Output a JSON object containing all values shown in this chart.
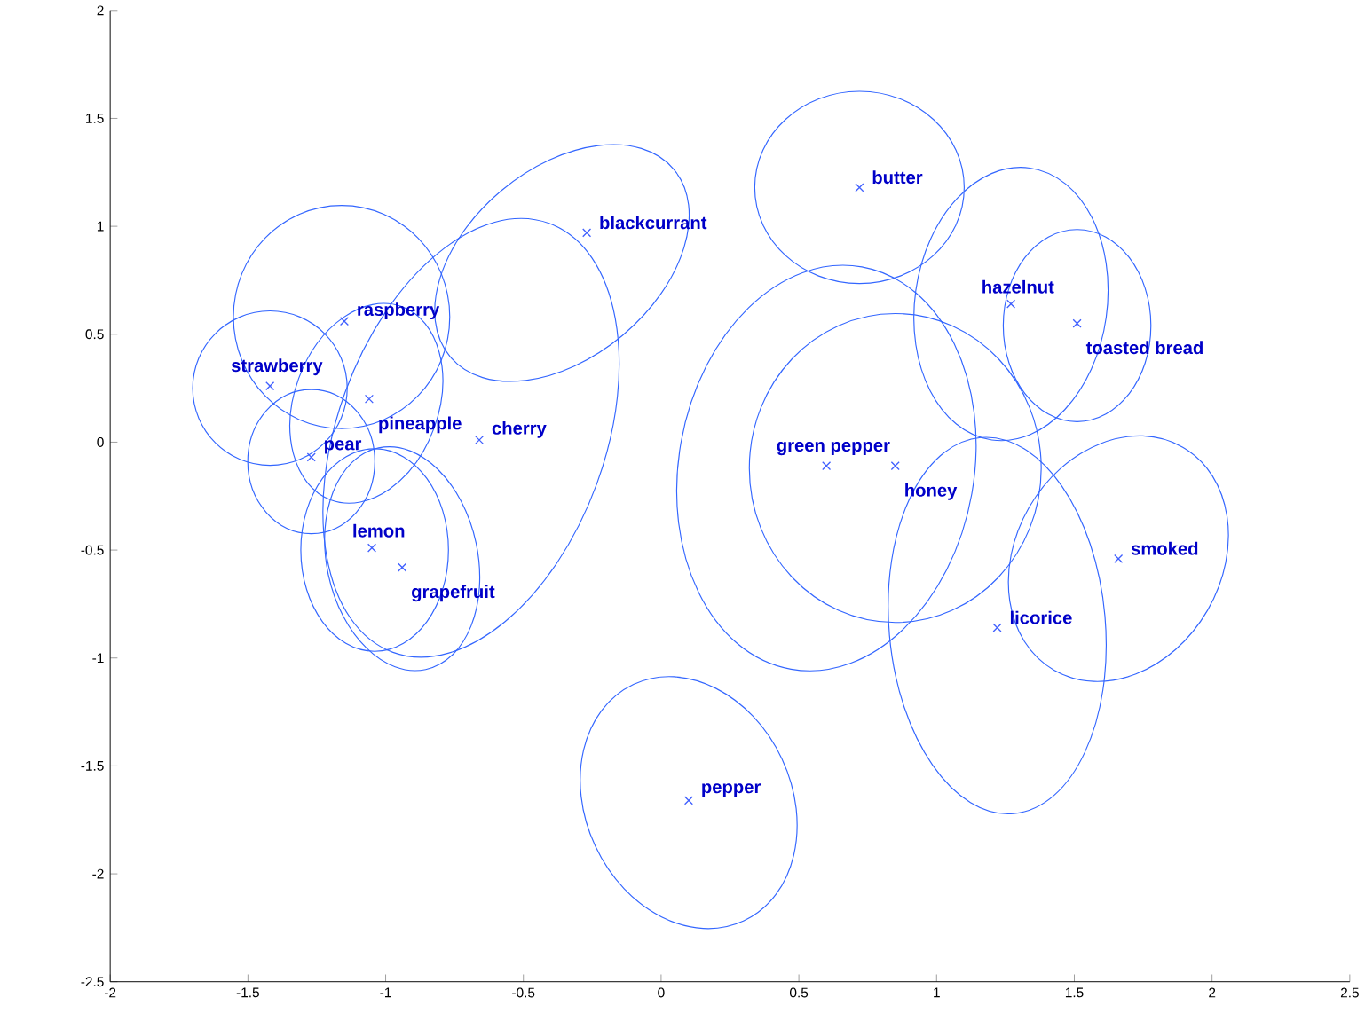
{
  "chart_data": {
    "type": "scatter",
    "xlim": [
      -2,
      2.5
    ],
    "ylim": [
      -2.5,
      2
    ],
    "xticks": [
      -2,
      -1.5,
      -1,
      -0.5,
      0,
      0.5,
      1,
      1.5,
      2,
      2.5
    ],
    "yticks": [
      -2.5,
      -2,
      -1.5,
      -1,
      -0.5,
      0,
      0.5,
      1,
      1.5,
      2
    ],
    "series": [
      {
        "marker": "cross",
        "color": "#4060ff",
        "x": [
          -0.27,
          0.72,
          -1.15,
          1.27,
          1.51,
          -1.42,
          -1.06,
          -1.27,
          -0.66,
          0.6,
          0.85,
          -1.05,
          -0.94,
          1.66,
          1.22,
          0.1
        ],
        "values": [
          0.97,
          1.18,
          0.56,
          0.64,
          0.55,
          0.26,
          0.2,
          -0.07,
          0.01,
          -0.11,
          -0.11,
          -0.49,
          -0.58,
          -0.54,
          -0.86,
          -1.66
        ]
      }
    ],
    "annotations": [
      {
        "text": "blackcurrant",
        "x": -0.27,
        "y": 0.97
      },
      {
        "text": "butter",
        "x": 0.72,
        "y": 1.18
      },
      {
        "text": "raspberry",
        "x": -1.15,
        "y": 0.56
      },
      {
        "text": "hazelnut",
        "x": 1.27,
        "y": 0.64
      },
      {
        "text": "toasted bread",
        "x": 1.51,
        "y": 0.55
      },
      {
        "text": "strawberry",
        "x": -1.42,
        "y": 0.26
      },
      {
        "text": "pineapple",
        "x": -1.06,
        "y": 0.2
      },
      {
        "text": "pear",
        "x": -1.27,
        "y": -0.07
      },
      {
        "text": "cherry",
        "x": -0.66,
        "y": 0.01
      },
      {
        "text": "green pepper",
        "x": 0.6,
        "y": -0.11
      },
      {
        "text": "honey",
        "x": 0.85,
        "y": -0.11
      },
      {
        "text": "lemon",
        "x": -1.05,
        "y": -0.49
      },
      {
        "text": "grapefruit",
        "x": -0.94,
        "y": -0.58
      },
      {
        "text": "smoked",
        "x": 1.66,
        "y": -0.54
      },
      {
        "text": "licorice",
        "x": 1.22,
        "y": -0.86
      },
      {
        "text": "pepper",
        "x": 0.1,
        "y": -1.66
      }
    ]
  }
}
